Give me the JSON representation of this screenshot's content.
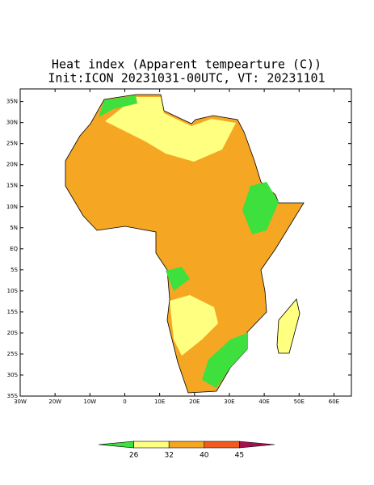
{
  "title": "Heat index (Apparent tempearture (C))",
  "subtitle": "Init:ICON 20231031-00UTC, VT: 20231101",
  "map": {
    "lon_range": [
      -30,
      65
    ],
    "lat_range": [
      -35,
      38
    ],
    "lat_ticks": [
      {
        "value": 35,
        "label": "35N"
      },
      {
        "value": 30,
        "label": "30N"
      },
      {
        "value": 25,
        "label": "25N"
      },
      {
        "value": 20,
        "label": "20N"
      },
      {
        "value": 15,
        "label": "15N"
      },
      {
        "value": 10,
        "label": "10N"
      },
      {
        "value": 5,
        "label": "5N"
      },
      {
        "value": 0,
        "label": "EQ"
      },
      {
        "value": -5,
        "label": "5S"
      },
      {
        "value": -10,
        "label": "10S"
      },
      {
        "value": -15,
        "label": "15S"
      },
      {
        "value": -20,
        "label": "20S"
      },
      {
        "value": -25,
        "label": "25S"
      },
      {
        "value": -30,
        "label": "30S"
      },
      {
        "value": -35,
        "label": "35S"
      }
    ],
    "lon_ticks": [
      {
        "value": -30,
        "label": "30W"
      },
      {
        "value": -20,
        "label": "20W"
      },
      {
        "value": -10,
        "label": "10W"
      },
      0,
      {
        "value": 10,
        "label": "10E"
      },
      {
        "value": 20,
        "label": "20E"
      },
      {
        "value": 30,
        "label": "30E"
      },
      {
        "value": 40,
        "label": "40E"
      },
      {
        "value": 50,
        "label": "50E"
      },
      {
        "value": 60,
        "label": "60E"
      }
    ]
  },
  "colorbar": {
    "levels": [
      26,
      32,
      40,
      45
    ],
    "colors": [
      "#3ee03e",
      "#ffff80",
      "#f5a623",
      "#f25a1e",
      "#a3124f"
    ]
  }
}
